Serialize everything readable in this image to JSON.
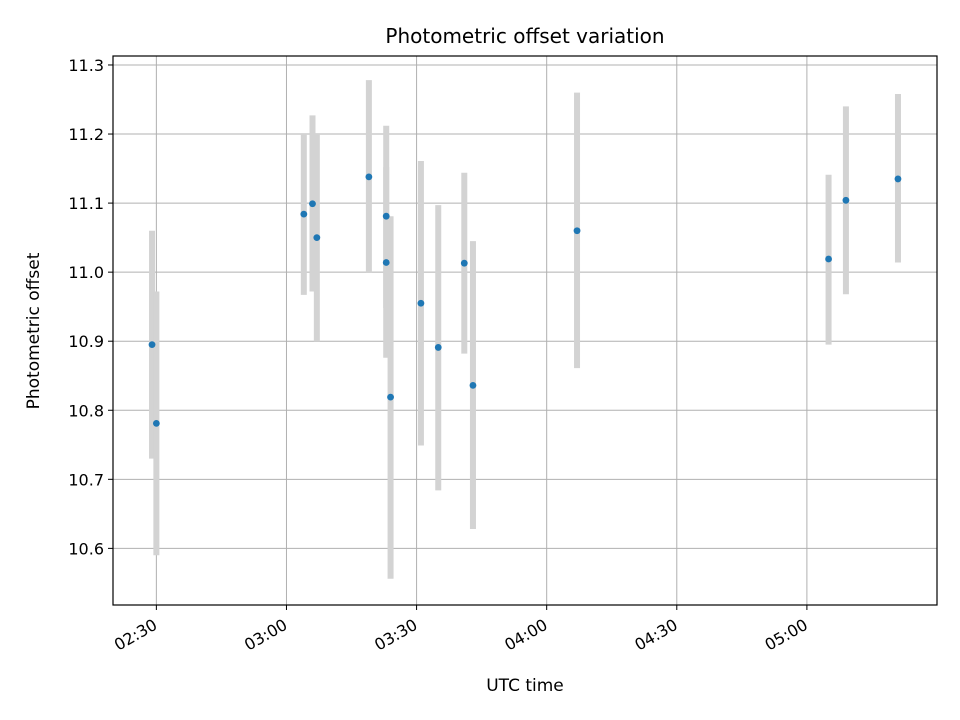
{
  "chart_data": {
    "type": "scatter",
    "title": "Photometric offset variation",
    "xlabel": "UTC time",
    "ylabel": "Photometric offset",
    "x_unit": "UTC time (HH:MM)",
    "xlim": [
      "02:20",
      "05:30"
    ],
    "ylim": [
      10.518,
      11.313
    ],
    "xticks": [
      "02:30",
      "03:00",
      "03:30",
      "04:00",
      "04:30",
      "05:00"
    ],
    "yticks": [
      "10.6",
      "10.7",
      "10.8",
      "10.9",
      "11.0",
      "11.1",
      "11.2",
      "11.3"
    ],
    "grid": true,
    "legend": "none",
    "marker_color": "#1f77b4",
    "errorbar_color": "#d3d3d3",
    "points": [
      {
        "x": "02:29",
        "y": 10.895,
        "ylow": 10.73,
        "yhigh": 11.06
      },
      {
        "x": "02:30",
        "y": 10.781,
        "ylow": 10.59,
        "yhigh": 10.972
      },
      {
        "x": "03:04",
        "y": 11.084,
        "ylow": 10.967,
        "yhigh": 11.2
      },
      {
        "x": "03:06",
        "y": 11.099,
        "ylow": 10.972,
        "yhigh": 11.227
      },
      {
        "x": "03:07",
        "y": 11.05,
        "ylow": 10.9,
        "yhigh": 11.2
      },
      {
        "x": "03:19",
        "y": 11.138,
        "ylow": 11.0,
        "yhigh": 11.278
      },
      {
        "x": "03:23",
        "y": 11.081,
        "ylow": 10.948,
        "yhigh": 11.212
      },
      {
        "x": "03:23",
        "y": 11.014,
        "ylow": 10.876,
        "yhigh": 11.152
      },
      {
        "x": "03:24",
        "y": 10.819,
        "ylow": 10.556,
        "yhigh": 11.081
      },
      {
        "x": "03:31",
        "y": 10.955,
        "ylow": 10.749,
        "yhigh": 11.161
      },
      {
        "x": "03:35",
        "y": 10.891,
        "ylow": 10.684,
        "yhigh": 11.097
      },
      {
        "x": "03:41",
        "y": 11.013,
        "ylow": 10.882,
        "yhigh": 11.144
      },
      {
        "x": "03:43",
        "y": 10.836,
        "ylow": 10.628,
        "yhigh": 11.045
      },
      {
        "x": "04:07",
        "y": 11.06,
        "ylow": 10.861,
        "yhigh": 11.26
      },
      {
        "x": "05:05",
        "y": 11.019,
        "ylow": 10.895,
        "yhigh": 11.141
      },
      {
        "x": "05:09",
        "y": 11.104,
        "ylow": 10.968,
        "yhigh": 11.24
      },
      {
        "x": "05:21",
        "y": 11.135,
        "ylow": 11.014,
        "yhigh": 11.258
      }
    ]
  }
}
